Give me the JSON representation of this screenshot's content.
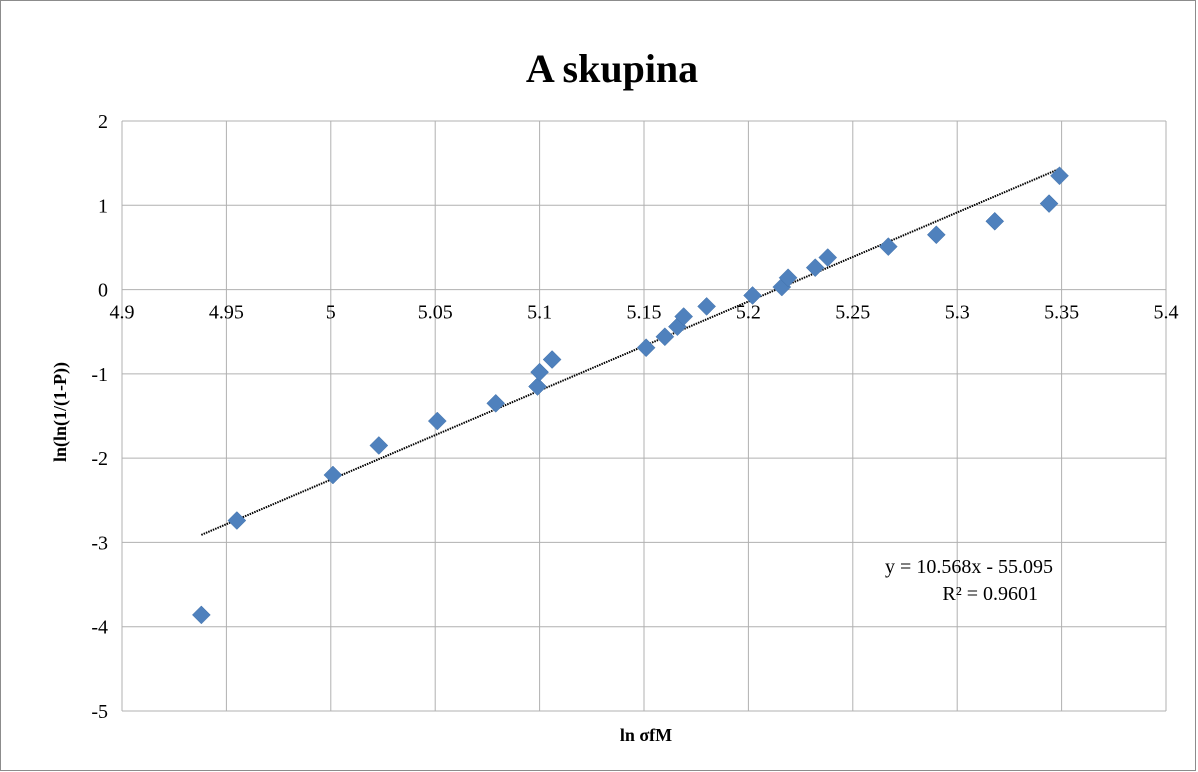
{
  "chart_data": {
    "type": "scatter",
    "title": "A skupina",
    "xlabel": "ln σfM",
    "ylabel": "ln(ln(1/(1-P))",
    "xlim": [
      4.9,
      5.4
    ],
    "ylim": [
      -5,
      2
    ],
    "x_ticks": [
      "4.9",
      "4.95",
      "5",
      "5.05",
      "5.1",
      "5.15",
      "5.2",
      "5.25",
      "5.3",
      "5.35",
      "5.4"
    ],
    "y_ticks": [
      "2",
      "1",
      "0",
      "-1",
      "-2",
      "-3",
      "-4",
      "-5"
    ],
    "grid": true,
    "marker": "diamond",
    "marker_color": "#4f81bd",
    "series": [
      {
        "points": [
          [
            4.938,
            -3.86
          ],
          [
            4.955,
            -2.74
          ],
          [
            5.001,
            -2.2
          ],
          [
            5.023,
            -1.85
          ],
          [
            5.051,
            -1.56
          ],
          [
            5.079,
            -1.35
          ],
          [
            5.099,
            -1.15
          ],
          [
            5.1,
            -0.98
          ],
          [
            5.106,
            -0.83
          ],
          [
            5.151,
            -0.69
          ],
          [
            5.16,
            -0.56
          ],
          [
            5.166,
            -0.44
          ],
          [
            5.169,
            -0.32
          ],
          [
            5.18,
            -0.2
          ],
          [
            5.202,
            -0.07
          ],
          [
            5.216,
            0.03
          ],
          [
            5.219,
            0.14
          ],
          [
            5.232,
            0.26
          ],
          [
            5.238,
            0.38
          ],
          [
            5.267,
            0.51
          ],
          [
            5.29,
            0.65
          ],
          [
            5.318,
            0.81
          ],
          [
            5.344,
            1.02
          ],
          [
            5.349,
            1.35
          ]
        ]
      }
    ],
    "trendline": {
      "type": "linear",
      "slope": 10.568,
      "intercept": -55.095,
      "x_range": [
        4.938,
        5.349
      ],
      "equation": "y = 10.568x - 55.095",
      "r_squared": "R² = 0.9601"
    }
  }
}
